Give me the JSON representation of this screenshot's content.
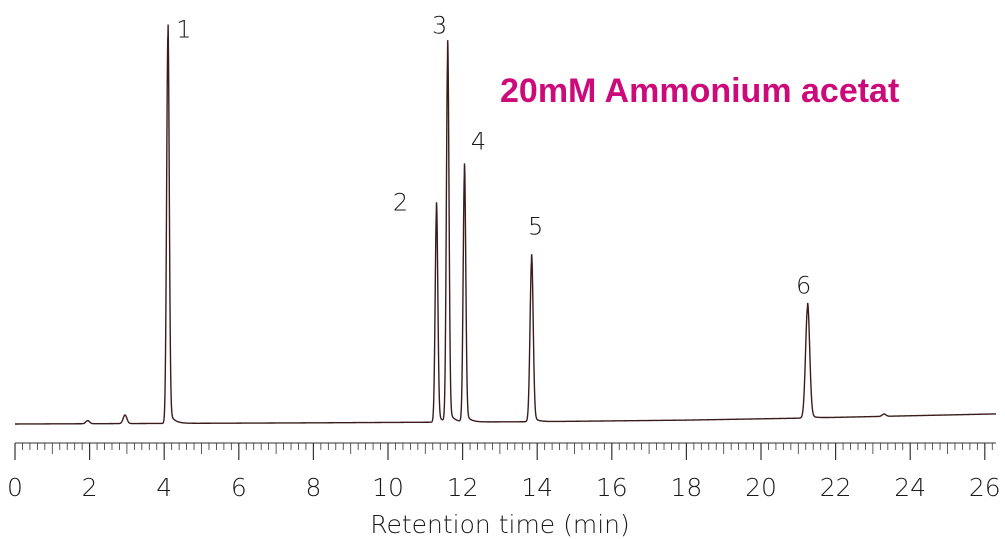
{
  "chart_data": {
    "type": "line",
    "title": "",
    "annotation": "20mM Ammonium acetat",
    "xlabel": "Retention time (min)",
    "ylabel": "",
    "xlim": [
      0,
      26.3
    ],
    "ylim": [
      0,
      100
    ],
    "x_ticks": [
      0,
      2,
      4,
      6,
      8,
      10,
      12,
      14,
      16,
      18,
      20,
      22,
      24,
      26
    ],
    "colors": {
      "trace": "#3a1c1c",
      "annotation": "#cc0a7a",
      "axis": "#333333"
    },
    "baseline": [
      [
        0,
        0.0
      ],
      [
        8,
        0.3
      ],
      [
        14,
        0.6
      ],
      [
        18,
        1.0
      ],
      [
        21,
        1.5
      ],
      [
        26.3,
        2.6
      ]
    ],
    "minor_peaks": [
      {
        "rt": 1.95,
        "height": 0.8
      },
      {
        "rt": 2.95,
        "height": 2.2
      },
      {
        "rt": 23.3,
        "height": 0.6
      }
    ],
    "peaks": [
      {
        "label": "1",
        "rt": 4.1,
        "height": 100
      },
      {
        "label": "2",
        "rt": 11.3,
        "height": 54.5
      },
      {
        "label": "3",
        "rt": 11.6,
        "height": 94.5
      },
      {
        "label": "4",
        "rt": 12.05,
        "height": 64.0
      },
      {
        "label": "5",
        "rt": 13.85,
        "height": 41.5
      },
      {
        "label": "6",
        "rt": 21.25,
        "height": 28.5
      }
    ]
  }
}
